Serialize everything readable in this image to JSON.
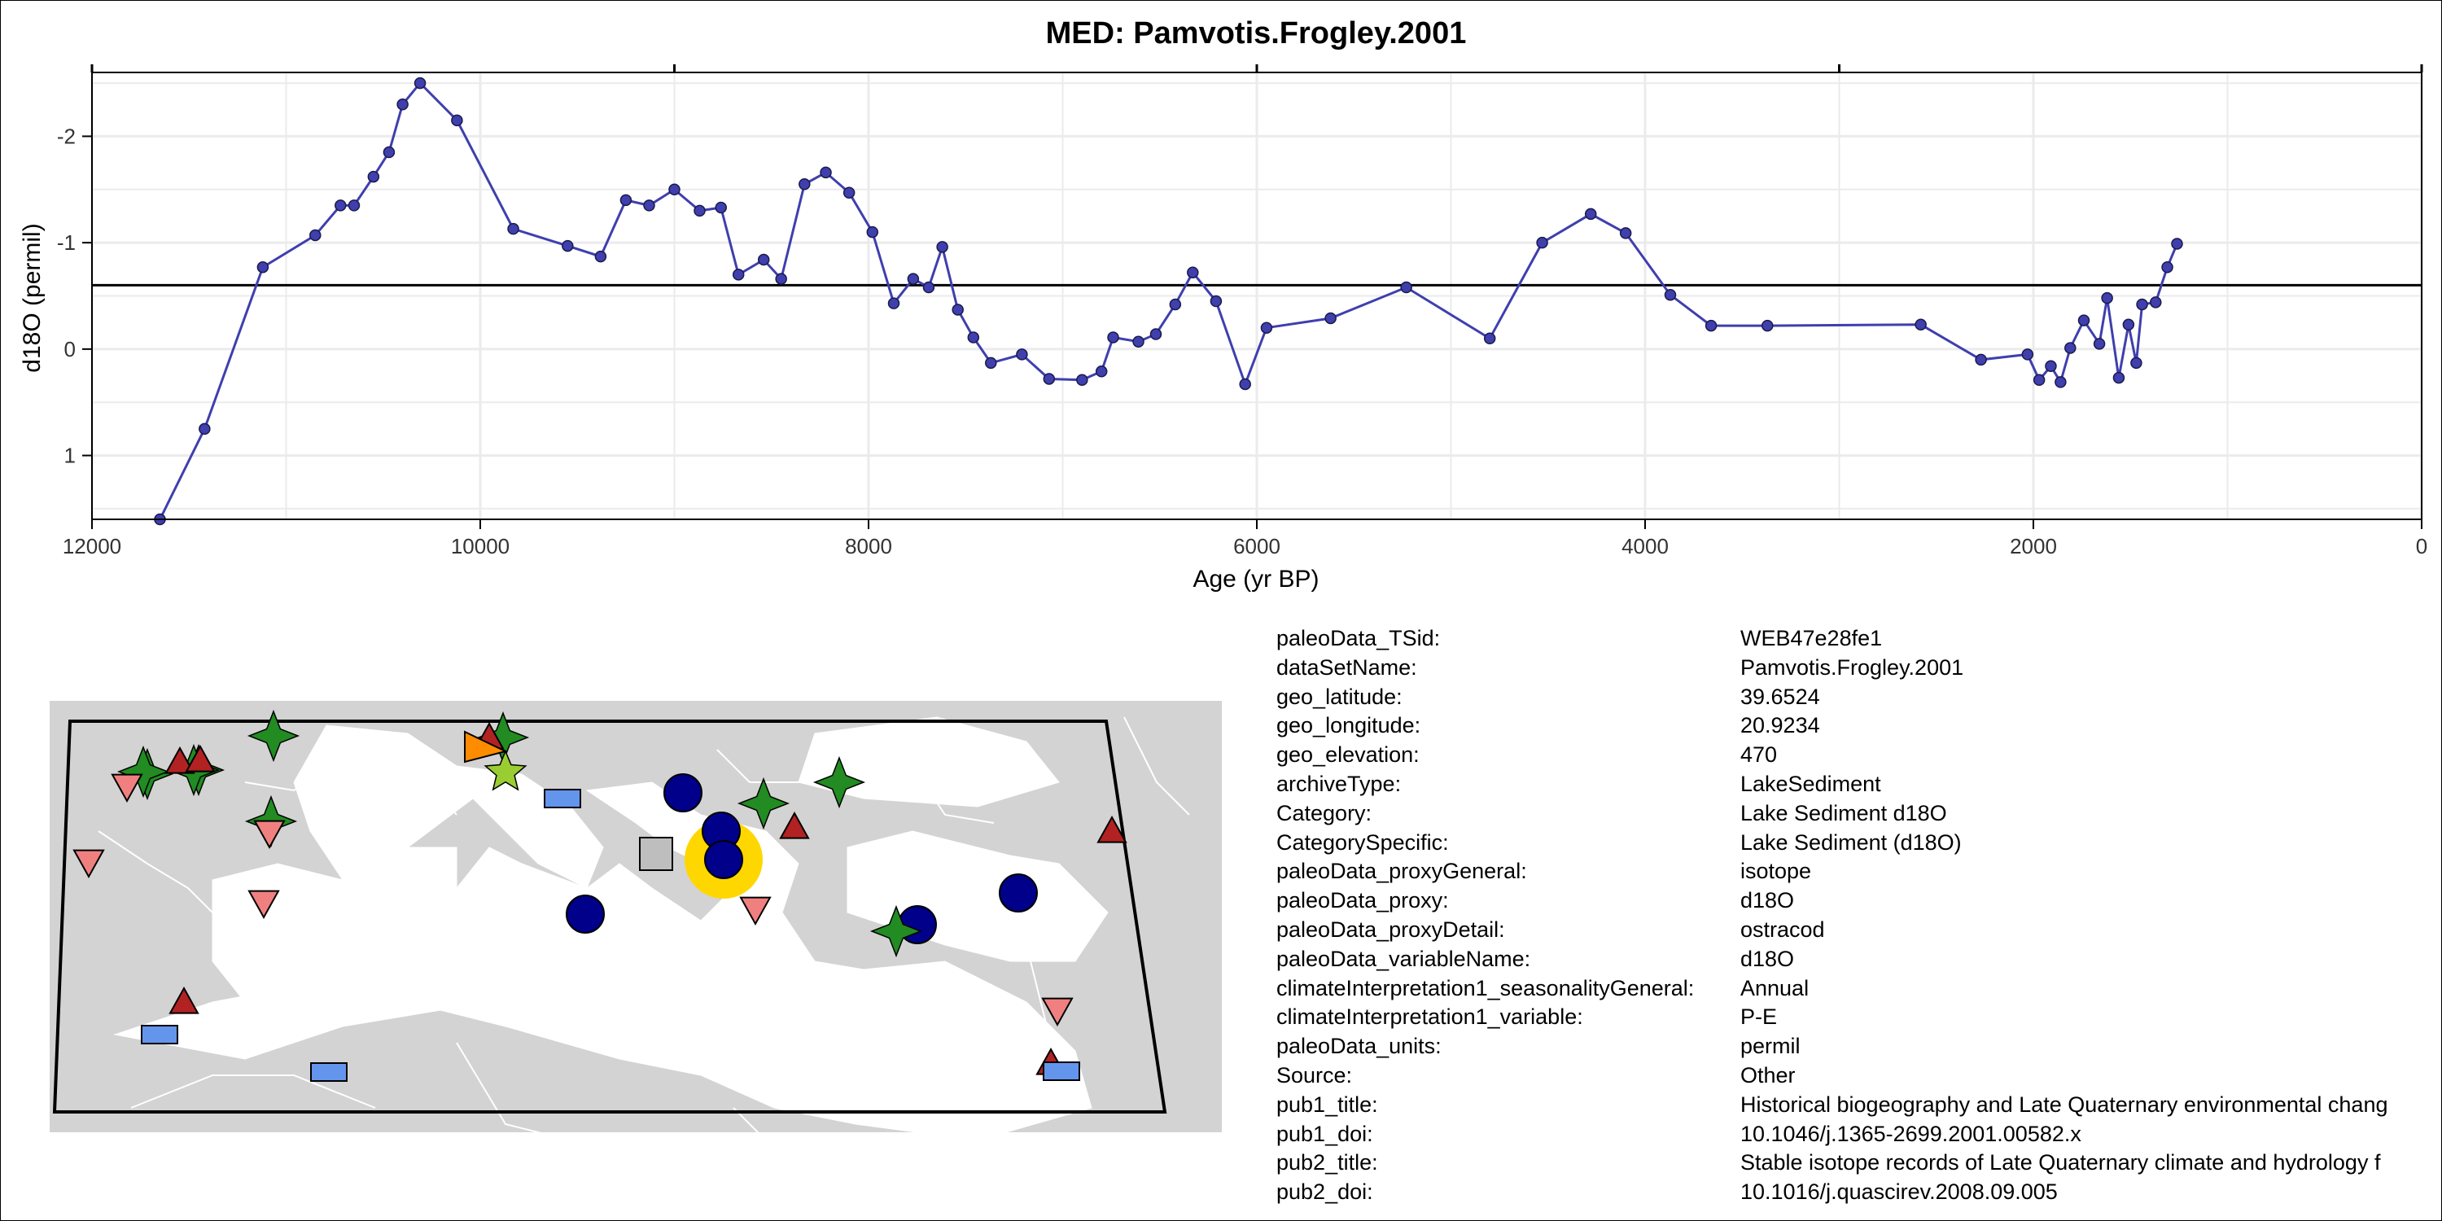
{
  "chart_data": {
    "type": "line",
    "title": "MED: Pamvotis.Frogley.2001",
    "xlabel": "Age (yr BP)",
    "ylabel": "d18O (permil)",
    "xlim": [
      12000,
      0
    ],
    "ylim": [
      1.6,
      -2.6
    ],
    "y_reversed": true,
    "x_reversed": true,
    "xticks": [
      "12000",
      "10000",
      "8000",
      "6000",
      "4000",
      "2000",
      "0"
    ],
    "yticks": [
      "-2",
      "-1",
      "0",
      "1"
    ],
    "reference_line_y": -0.6,
    "grid": true,
    "series": [
      {
        "color": "#3f3fae",
        "x": [
          11650,
          11420,
          11120,
          10850,
          10720,
          10650,
          10550,
          10470,
          10400,
          10310,
          10120,
          9830,
          9550,
          9380,
          9250,
          9130,
          9000,
          8870,
          8760,
          8670,
          8540,
          8450,
          8330,
          8220,
          8100,
          7980,
          7870,
          7770,
          7690,
          7620,
          7540,
          7460,
          7370,
          7210,
          7070,
          6900,
          6800,
          6740,
          6610,
          6520,
          6420,
          6330,
          6210,
          6060,
          5950,
          5620,
          5230,
          4800,
          4530,
          4280,
          4100,
          3870,
          3660,
          3370,
          2580,
          2270,
          2030,
          1970,
          1910,
          1860,
          1810,
          1740,
          1660,
          1620,
          1560,
          1510,
          1470,
          1440,
          1370,
          1310,
          1260
        ],
        "y": [
          1.6,
          0.75,
          -0.77,
          -1.07,
          -1.35,
          -1.35,
          -1.62,
          -1.85,
          -2.3,
          -2.5,
          -2.15,
          -1.13,
          -0.97,
          -0.87,
          -1.4,
          -1.35,
          -1.5,
          -1.3,
          -1.33,
          -0.7,
          -0.84,
          -0.66,
          -1.55,
          -1.66,
          -1.47,
          -1.1,
          -0.43,
          -0.66,
          -0.58,
          -0.96,
          -0.37,
          -0.11,
          0.13,
          0.05,
          0.28,
          0.29,
          0.21,
          -0.11,
          -0.07,
          -0.14,
          -0.42,
          -0.72,
          -0.45,
          0.33,
          -0.2,
          -0.29,
          -0.58,
          -0.1,
          -1.0,
          -1.27,
          -1.09,
          -0.51,
          -0.22,
          -0.22,
          -0.23,
          0.1,
          0.05,
          0.29,
          0.16,
          0.31,
          -0.01,
          -0.27,
          -0.05,
          -0.48,
          0.27,
          -0.23,
          0.13,
          -0.42,
          -0.44,
          -0.77,
          -0.99
        ]
      }
    ]
  },
  "map": {
    "highlight_color": "#ffd700",
    "marker_colors": {
      "blue_circle": "#00008b",
      "green_star": "#228b22",
      "red_triangle": "#b22222",
      "pink_triangle_down": "#f08080",
      "blue_rect": "#6495ed",
      "gray_square": "#bebebe",
      "orange": "#ff8c00",
      "light_green_star": "#9acd32"
    }
  },
  "metadata": [
    {
      "key": "paleoData_TSid:",
      "value": "WEB47e28fe1"
    },
    {
      "key": "dataSetName:",
      "value": "Pamvotis.Frogley.2001"
    },
    {
      "key": "geo_latitude:",
      "value": "39.6524"
    },
    {
      "key": "geo_longitude:",
      "value": "20.9234"
    },
    {
      "key": "geo_elevation:",
      "value": "470"
    },
    {
      "key": "archiveType:",
      "value": "LakeSediment"
    },
    {
      "key": "Category:",
      "value": "Lake Sediment d18O"
    },
    {
      "key": "CategorySpecific:",
      "value": "Lake Sediment (d18O)"
    },
    {
      "key": "paleoData_proxyGeneral:",
      "value": "isotope"
    },
    {
      "key": "paleoData_proxy:",
      "value": "d18O"
    },
    {
      "key": "paleoData_proxyDetail:",
      "value": "ostracod"
    },
    {
      "key": "paleoData_variableName:",
      "value": "d18O"
    },
    {
      "key": "climateInterpretation1_seasonalityGeneral:",
      "value": "Annual"
    },
    {
      "key": "climateInterpretation1_variable:",
      "value": "P-E"
    },
    {
      "key": "paleoData_units:",
      "value": "permil"
    },
    {
      "key": "Source:",
      "value": "Other"
    },
    {
      "key": "pub1_title:",
      "value": "Historical biogeography and Late Quaternary environmental chang"
    },
    {
      "key": "pub1_doi:",
      "value": "10.1046/j.1365-2699.2001.00582.x"
    },
    {
      "key": "pub2_title:",
      "value": "Stable isotope records of Late Quaternary climate and hydrology f"
    },
    {
      "key": "pub2_doi:",
      "value": "10.1016/j.quascirev.2008.09.005"
    }
  ]
}
